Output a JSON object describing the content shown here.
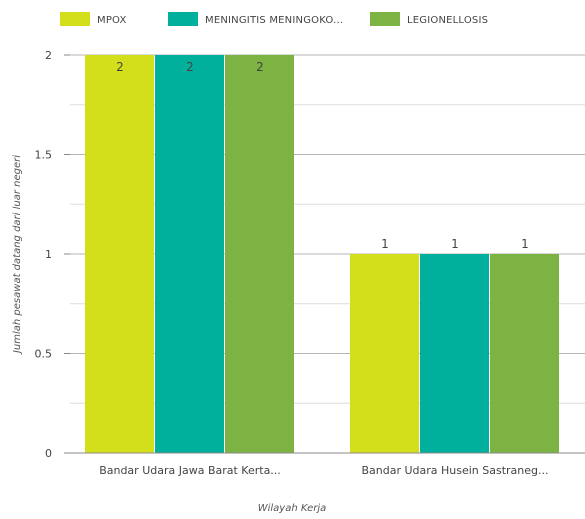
{
  "chart_data": {
    "type": "bar",
    "categories": [
      "Bandar Udara Jawa Barat Kerta...",
      "Bandar Udara Husein Sastraneg..."
    ],
    "series": [
      {
        "name": "MPOX",
        "values": [
          2,
          1
        ],
        "color": "#d4df1c"
      },
      {
        "name": "MENINGITIS MENINGOKO...",
        "values": [
          2,
          1
        ],
        "color": "#00b09c"
      },
      {
        "name": "LEGIONELLOSIS",
        "values": [
          2,
          1
        ],
        "color": "#7cb342"
      }
    ],
    "data_labels": [
      [
        "2",
        "1"
      ],
      [
        "2",
        "1"
      ],
      [
        "2",
        "1"
      ]
    ],
    "xlabel": "Wilayah Kerja",
    "ylabel": "Jumlah pesawat datang dari luar negeri",
    "ylim": [
      0,
      2
    ],
    "yticks": [
      0,
      0.5,
      1,
      1.5,
      2
    ],
    "ytick_labels": [
      "0",
      "0.5",
      "1",
      "1.5",
      "2"
    ],
    "grid": true,
    "legend_position": "top"
  }
}
